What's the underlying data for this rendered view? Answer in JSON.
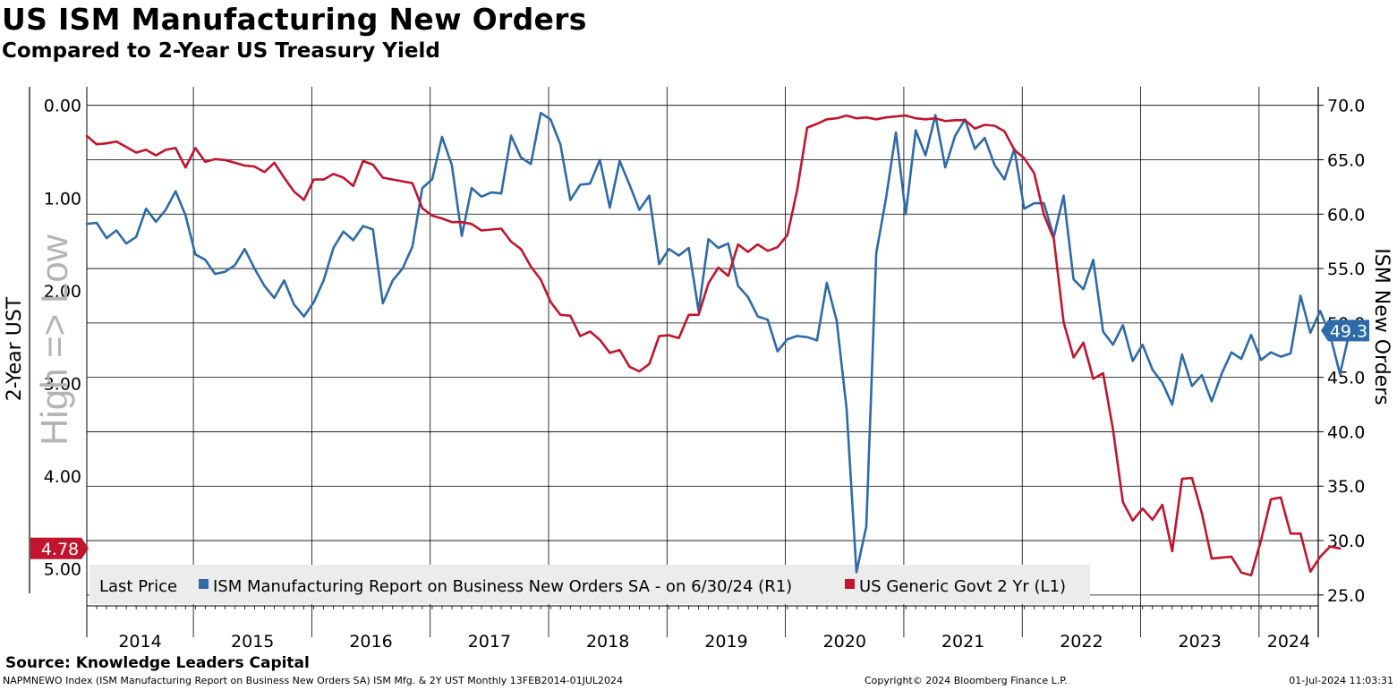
{
  "header": {
    "title": "US ISM Manufacturing New Orders",
    "subtitle": "Compared to 2-Year US Treasury Yield"
  },
  "footer": {
    "source": "Source: Knowledge Leaders Capital",
    "description": "NAPMNEWO Index (ISM Manufacturing Report on Business New Orders SA) ISM Mfg. & 2Y UST  Monthly 13FEB2014-01JUL2024",
    "copyright": "Copyright© 2024 Bloomberg Finance L.P.",
    "timestamp": "01-Jul-2024 11:03:31"
  },
  "chart_data": {
    "type": "line",
    "title": "US ISM Manufacturing New Orders",
    "subtitle": "Compared to 2-Year US Treasury Yield",
    "x_tick_labels": [
      "2014",
      "2015",
      "2016",
      "2017",
      "2018",
      "2019",
      "2020",
      "2021",
      "2022",
      "2023",
      "2024"
    ],
    "x_range": [
      2014.1,
      2024.5
    ],
    "y_left": {
      "label": "2-Year UST",
      "inverted": true,
      "range": [
        -0.2,
        5.4
      ],
      "ticks": [
        0,
        1,
        2,
        3,
        4,
        5
      ],
      "tick_labels": [
        "0.00",
        "1.00",
        "2.00",
        "3.00",
        "4.00",
        "5.00"
      ],
      "annotation": "High => Low",
      "last_value_label": "4.78",
      "last_value": 4.78
    },
    "y_right": {
      "label": "ISM New Orders",
      "range": [
        24,
        71.7
      ],
      "ticks": [
        25,
        30,
        35,
        40,
        45,
        50,
        55,
        60,
        65,
        70
      ],
      "tick_labels": [
        "25.0",
        "30.0",
        "35.0",
        "40.0",
        "45.0",
        "50.0",
        "55.0",
        "60.0",
        "65.0",
        "70.0"
      ],
      "last_value_label": "49.3",
      "last_value": 49.3
    },
    "legend": {
      "prefix": "Last Price",
      "items": [
        {
          "name": "ISM Manufacturing Report on Business New Orders SA -  on 6/30/24  (R1)",
          "color": "#2e6aa8"
        },
        {
          "name": "US Generic Govt 2 Yr  (L1)",
          "color": "#c0152d"
        }
      ]
    },
    "series": [
      {
        "name": "ISM Manufacturing Report on Business New Orders SA",
        "axis": "right",
        "color": "#2e6aa8",
        "start": 2014.1,
        "step": 0.08333333,
        "values": [
          59.1,
          59.2,
          57.8,
          58.5,
          57.3,
          57.9,
          60.5,
          59.3,
          60.4,
          62.1,
          59.9,
          56.3,
          55.8,
          54.5,
          54.7,
          55.3,
          56.8,
          55.0,
          53.4,
          52.3,
          53.9,
          51.7,
          50.6,
          51.9,
          53.9,
          56.9,
          58.4,
          57.6,
          58.9,
          58.6,
          51.8,
          53.9,
          55.0,
          57.0,
          62.4,
          63.2,
          67.1,
          64.5,
          58.0,
          62.4,
          61.6,
          62.0,
          61.9,
          67.2,
          65.2,
          64.6,
          69.3,
          68.7,
          66.4,
          61.3,
          62.7,
          62.8,
          65.0,
          60.6,
          64.9,
          62.7,
          60.4,
          61.7,
          55.4,
          56.8,
          56.2,
          56.9,
          51.1,
          57.7,
          56.9,
          57.3,
          53.4,
          52.4,
          50.6,
          50.3,
          47.4,
          48.5,
          48.8,
          48.7,
          48.4,
          53.7,
          50.2,
          42.1,
          27.1,
          31.3,
          56.4,
          61.5,
          67.5,
          60.0,
          67.7,
          65.4,
          69.1,
          64.3,
          67.2,
          68.7,
          66.0,
          67.0,
          64.5,
          63.2,
          66.0,
          60.5,
          61.0,
          61.0,
          57.9,
          61.7,
          54.0,
          53.1,
          55.8,
          49.2,
          48.0,
          49.8,
          46.5,
          48.0,
          45.7,
          44.5,
          42.5,
          47.1,
          44.2,
          45.2,
          42.8,
          45.3,
          47.3,
          46.7,
          48.9,
          46.6,
          47.3,
          46.9,
          47.2,
          52.5,
          49.1,
          51.1,
          48.9,
          45.3,
          49.3
        ]
      },
      {
        "name": "US Generic Govt 2 Yr",
        "axis": "left",
        "color": "#c0152d",
        "start": 2014.1,
        "step": 0.08333333,
        "values": [
          0.33,
          0.42,
          0.41,
          0.39,
          0.45,
          0.51,
          0.48,
          0.54,
          0.48,
          0.46,
          0.67,
          0.46,
          0.61,
          0.58,
          0.59,
          0.62,
          0.65,
          0.66,
          0.72,
          0.62,
          0.78,
          0.93,
          1.02,
          0.8,
          0.8,
          0.74,
          0.78,
          0.87,
          0.6,
          0.64,
          0.78,
          0.8,
          0.82,
          0.84,
          1.11,
          1.19,
          1.22,
          1.26,
          1.26,
          1.28,
          1.35,
          1.34,
          1.33,
          1.47,
          1.55,
          1.74,
          1.88,
          2.12,
          2.26,
          2.27,
          2.49,
          2.44,
          2.53,
          2.67,
          2.64,
          2.82,
          2.87,
          2.79,
          2.49,
          2.48,
          2.51,
          2.26,
          2.26,
          1.92,
          1.75,
          1.84,
          1.5,
          1.58,
          1.5,
          1.57,
          1.53,
          1.4,
          0.91,
          0.24,
          0.2,
          0.15,
          0.14,
          0.11,
          0.14,
          0.13,
          0.15,
          0.13,
          0.12,
          0.11,
          0.14,
          0.15,
          0.14,
          0.17,
          0.16,
          0.16,
          0.25,
          0.21,
          0.22,
          0.28,
          0.48,
          0.57,
          0.73,
          1.18,
          1.44,
          2.34,
          2.72,
          2.56,
          2.95,
          2.89,
          3.5,
          4.28,
          4.48,
          4.35,
          4.47,
          4.31,
          4.81,
          4.03,
          4.02,
          4.4,
          4.89,
          4.88,
          4.87,
          5.04,
          5.07,
          4.69,
          4.25,
          4.23,
          4.62,
          4.62,
          5.03,
          4.87,
          4.76,
          4.78
        ]
      }
    ]
  }
}
